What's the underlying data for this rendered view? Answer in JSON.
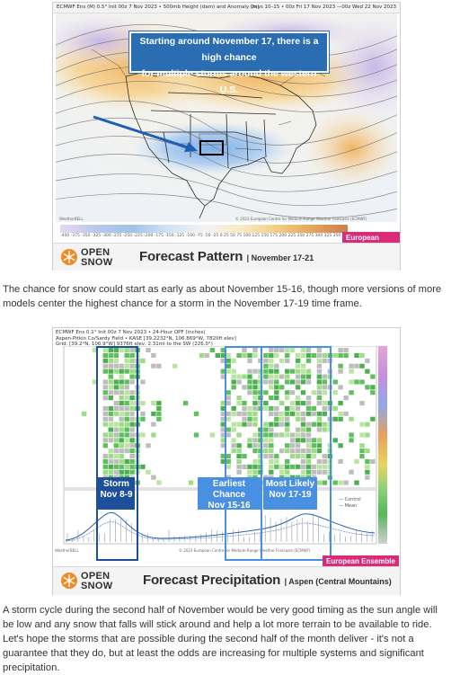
{
  "figure1": {
    "header_left": "ECMWF Ens (M) 0.5° Init 00z 7 Nov 2023 • 500mb Height (dam) and Anomaly (m)",
    "header_right": "Days 10–15 • 00z Fri 17 Nov 2023 —00z Wed 22 Nov 2023",
    "callout_line1": "Starting around November 17, there is a high chance",
    "callout_line2": "for multiple storms around the western U.S.",
    "colorbar_labels": "-400 -375 -350 -325 -300 -275 -250 -225 -200 -175 -150 -125 -100 -75 -50 -25 0 25 50 75 100 125 150 175 200 225 250 275 300 325 350 375 400",
    "ensemble_tag": "European Ensemble",
    "logo_top": "OPEN",
    "logo_bottom": "SNOW",
    "banner_title": "Forecast Pattern",
    "banner_sub": "| November 17-21",
    "colors": {
      "callout": "#2b6db3",
      "tag": "#d92b7a",
      "arrow": "#1e5fb8",
      "box": "#000000"
    }
  },
  "paragraph1": "The chance for snow could start as early as about November 15-16, though more versions of more models center the highest chance for a storm in the November 17-19 time frame.",
  "figure2": {
    "header_line1": "ECMWF Ens 0.1° Init 00z 7 Nov 2023 • 24-Hour QPF (inches)",
    "header_line2": "Aspen-Pitkin Co/Sardy Field • KASE [39.2232°N, 106.869°W, 7820ft elev]",
    "header_line3": "Grid: [39.2°N, 106.9°W] 9376ft elev, 2.31mi to the SW (226.0°)",
    "box1_line1": "Storm",
    "box1_line2": "Nov 8-9",
    "box2_line1": "Earliest Chance",
    "box2_line2": "Nov 15-16",
    "box3_line1": "Most Likely",
    "box3_line2": "Nov 17-19",
    "legend_control": "Control",
    "legend_mean": "Mean",
    "ensemble_tag": "European Ensemble",
    "logo_top": "OPEN",
    "logo_bottom": "SNOW",
    "banner_title": "Forecast Precipitation",
    "banner_sub": "| Aspen (Central Mountains)",
    "colors": {
      "box_light": "#4a90e2",
      "box_dark": "#1e4f9a",
      "tag": "#d92b7a"
    }
  },
  "paragraph2": "A storm cycle during the second half of November would be very good timing as the sun angle will be low and any snow that falls will stick around and help a lot more terrain to be available to ride. Let's hope the storms that are possible during the second half of the month deliver - it's not a guarantee that they do, but at least the odds are increasing for multiple systems and significant precipitation."
}
